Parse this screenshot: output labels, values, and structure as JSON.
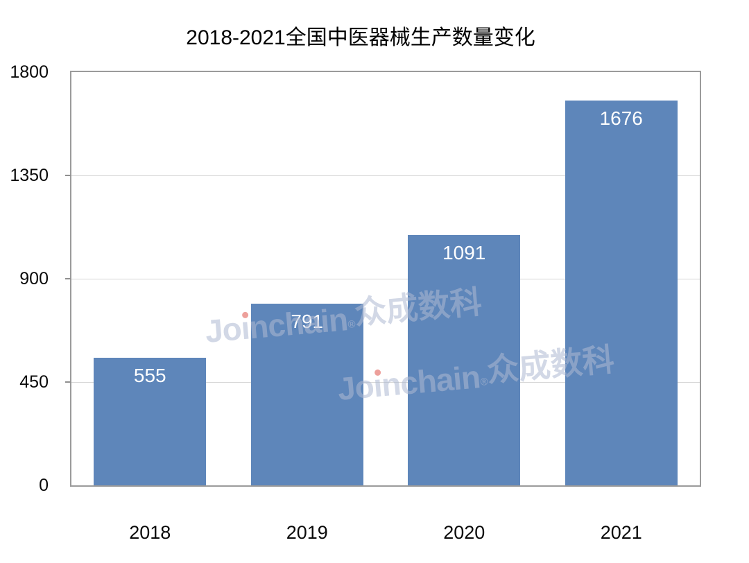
{
  "title": "2018-2021全国中医器械生产数量变化",
  "watermark": {
    "prefix": "Jo",
    "dotless_i": "ı",
    "middle": "nchain",
    "registered": "®",
    "suffix": "众成数科"
  },
  "colors": {
    "bar": "#5e86ba",
    "plot_frame": "#9b9b9b",
    "gridline": "#d6d6d6",
    "axis_text": "#0a0a0a",
    "value_label": "#ffffff",
    "watermark": "#aeb9d2",
    "watermark_i_dot": "#e0544a"
  },
  "chart_data": {
    "type": "bar",
    "title": "2018-2021全国中医器械生产数量变化",
    "categories": [
      "2018",
      "2019",
      "2020",
      "2021"
    ],
    "values": [
      555,
      791,
      1091,
      1676
    ],
    "xlabel": "",
    "ylabel": "",
    "ylim": [
      0,
      1800
    ],
    "yticks": [
      0,
      450,
      900,
      1350,
      1800
    ],
    "grid": true,
    "legend_position": "none",
    "value_label_position": "inside-top"
  }
}
